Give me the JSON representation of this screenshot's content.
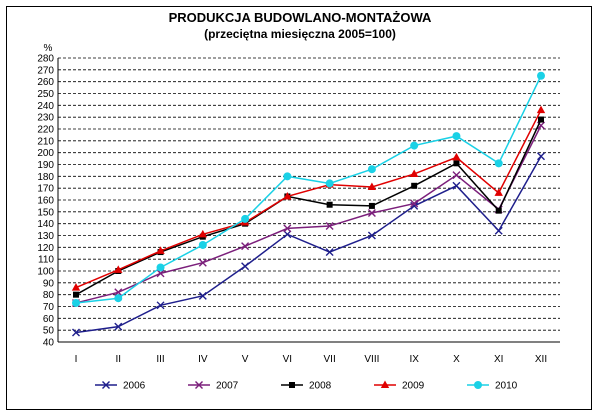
{
  "chart_data": {
    "type": "line",
    "title": "PRODUKCJA BUDOWLANO-MONTAŻOWA",
    "subtitle": "(przeciętna miesięczna 2005=100)",
    "ylabel": "%",
    "xlabel": "",
    "ylim": [
      40,
      280
    ],
    "yticks": [
      40,
      50,
      60,
      70,
      80,
      90,
      100,
      110,
      120,
      130,
      140,
      150,
      160,
      170,
      180,
      190,
      200,
      210,
      220,
      230,
      240,
      250,
      260,
      270,
      280
    ],
    "categories": [
      "I",
      "II",
      "III",
      "IV",
      "V",
      "VI",
      "VII",
      "VIII",
      "IX",
      "X",
      "XI",
      "XII"
    ],
    "grid": true,
    "legend_position": "bottom",
    "series": [
      {
        "name": "2006",
        "color": "#1f1f8c",
        "marker": "x",
        "values": [
          48,
          53,
          71,
          79,
          104,
          131,
          116,
          130,
          155,
          172,
          134,
          197
        ]
      },
      {
        "name": "2007",
        "color": "#7b1f7b",
        "marker": "x",
        "values": [
          73,
          82,
          98,
          107,
          121,
          136,
          138,
          149,
          157,
          181,
          152,
          223
        ]
      },
      {
        "name": "2008",
        "color": "#000000",
        "marker": "square",
        "values": [
          80,
          100,
          116,
          129,
          140,
          163,
          156,
          155,
          172,
          191,
          151,
          228
        ]
      },
      {
        "name": "2009",
        "color": "#e00000",
        "marker": "triangle",
        "values": [
          86,
          101,
          117,
          131,
          141,
          163,
          173,
          171,
          182,
          196,
          166,
          236
        ]
      },
      {
        "name": "2010",
        "color": "#1ad1e6",
        "marker": "circle",
        "values": [
          73,
          77,
          103,
          122,
          144,
          180,
          174,
          186,
          206,
          214,
          191,
          265
        ]
      }
    ]
  }
}
